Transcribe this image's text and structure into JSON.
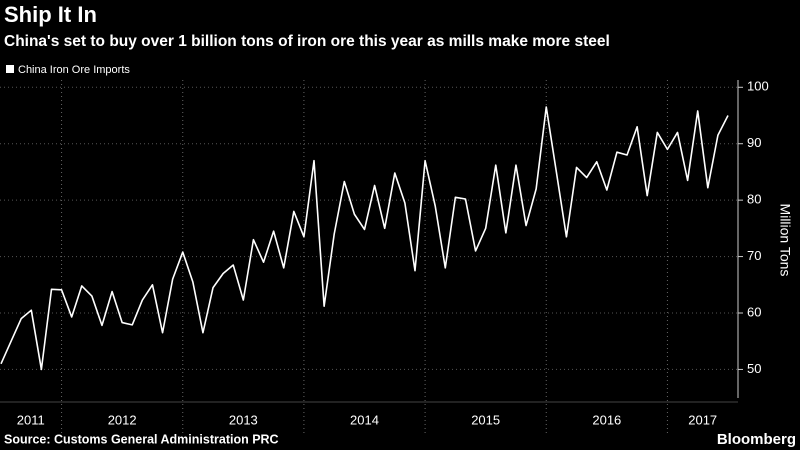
{
  "chart_data": {
    "type": "line",
    "title": "Ship It In",
    "subtitle": "China's set to buy over 1 billion tons of iron ore this year as mills make more steel",
    "y_label": "Million Tons",
    "source": "Source: Customs General Administration PRC",
    "brand": "Bloomberg",
    "x": [
      "2011-07",
      "2011-08",
      "2011-09",
      "2011-10",
      "2011-11",
      "2011-12",
      "2012-01",
      "2012-02",
      "2012-03",
      "2012-04",
      "2012-05",
      "2012-06",
      "2012-07",
      "2012-08",
      "2012-09",
      "2012-10",
      "2012-11",
      "2012-12",
      "2013-01",
      "2013-02",
      "2013-03",
      "2013-04",
      "2013-05",
      "2013-06",
      "2013-07",
      "2013-08",
      "2013-09",
      "2013-10",
      "2013-11",
      "2013-12",
      "2014-01",
      "2014-02",
      "2014-03",
      "2014-04",
      "2014-05",
      "2014-06",
      "2014-07",
      "2014-08",
      "2014-09",
      "2014-10",
      "2014-11",
      "2014-12",
      "2015-01",
      "2015-02",
      "2015-03",
      "2015-04",
      "2015-05",
      "2015-06",
      "2015-07",
      "2015-08",
      "2015-09",
      "2015-10",
      "2015-11",
      "2015-12",
      "2016-01",
      "2016-02",
      "2016-03",
      "2016-04",
      "2016-05",
      "2016-06",
      "2016-07",
      "2016-08",
      "2016-09",
      "2016-10",
      "2016-11",
      "2016-12",
      "2017-01",
      "2017-02",
      "2017-03",
      "2017-04",
      "2017-05",
      "2017-06",
      "2017-07"
    ],
    "series": [
      {
        "name": "China Iron Ore Imports",
        "color": "#ffffff",
        "values": [
          51,
          55,
          59,
          60.5,
          50,
          64.2,
          64.1,
          59.3,
          64.8,
          63,
          57.8,
          63.8,
          58.3,
          57.9,
          62.3,
          65,
          56.5,
          66,
          70.8,
          65.5,
          56.5,
          64.5,
          67,
          68.5,
          62.3,
          73,
          69,
          74.5,
          68,
          78,
          73.5,
          87,
          61.2,
          74,
          83.3,
          77.5,
          74.8,
          82.6,
          75,
          84.8,
          79.5,
          67.5,
          87,
          79,
          68,
          80.5,
          80.2,
          71,
          75,
          86.2,
          74.2,
          86.2,
          75.5,
          82,
          96.5,
          85,
          73.5,
          85.8,
          84,
          86.8,
          81.8,
          88.5,
          88,
          93,
          80.8,
          92,
          89,
          92,
          83.5,
          95.8,
          82.2,
          91.5,
          95
        ]
      }
    ],
    "xticks": [
      2011,
      2012,
      2013,
      2014,
      2015,
      2016,
      2017
    ],
    "ylim": [
      46,
      102
    ],
    "yticks": [
      50,
      60,
      70,
      80,
      90,
      100
    ],
    "grid": true,
    "legend": "top-left"
  }
}
